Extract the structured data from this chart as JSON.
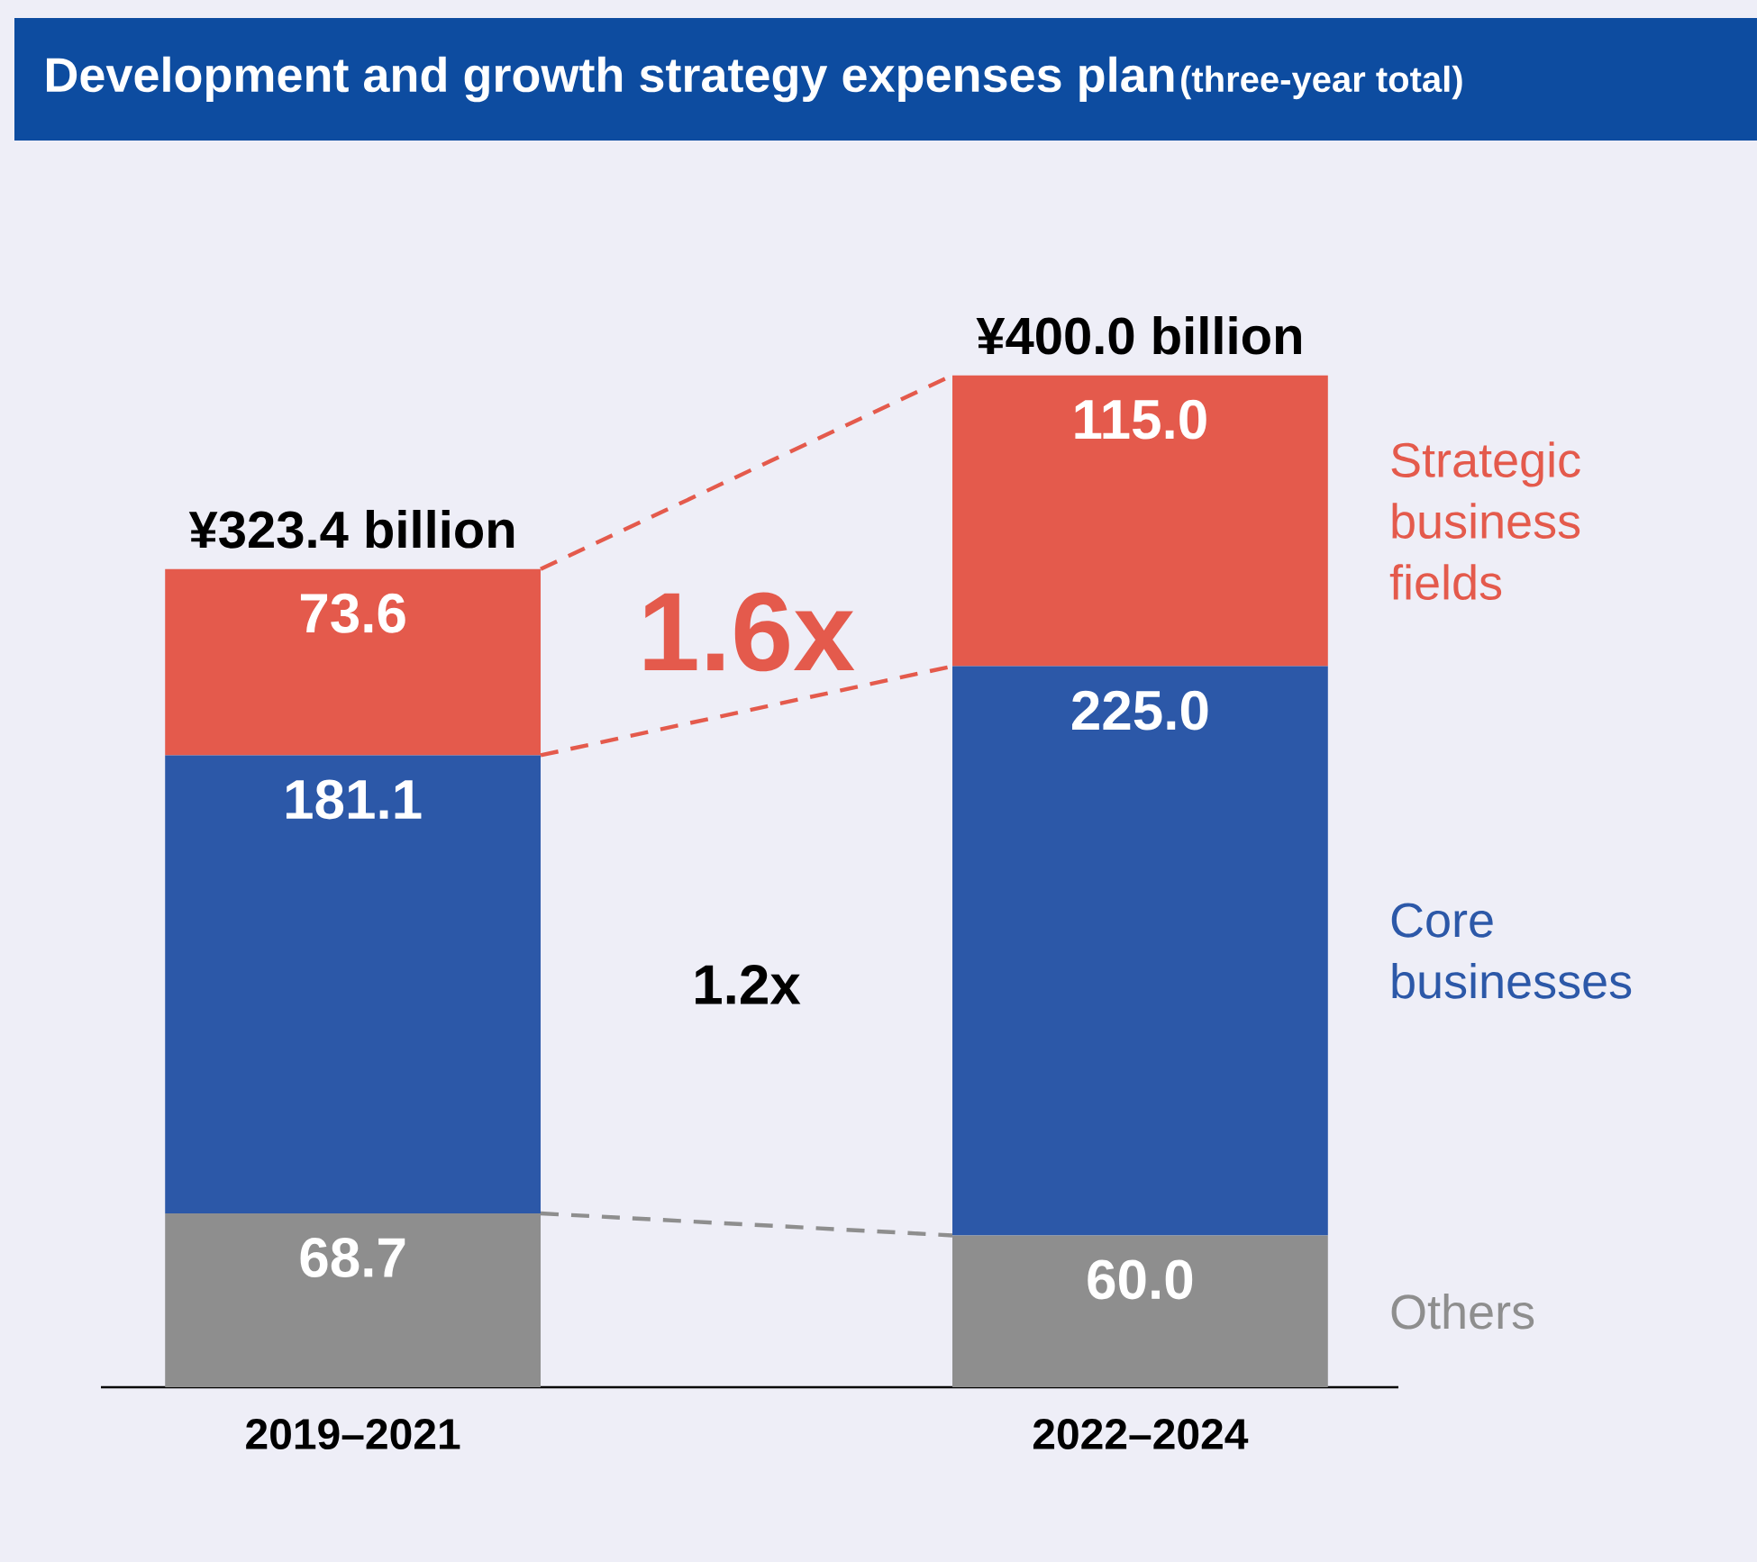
{
  "chart_data": {
    "type": "bar",
    "title": "Development and growth strategy expenses plan",
    "subtitle": "(three-year total)",
    "categories": [
      "2019–2021",
      "2022–2024"
    ],
    "stacked": true,
    "tick_labels": "x",
    "series": [
      {
        "name": "Others",
        "color": "#8e8e8e",
        "values": [
          68.7,
          60.0
        ],
        "value_labels": [
          "68.7",
          "60.0"
        ]
      },
      {
        "name": "Core businesses",
        "color": "#2c58a8",
        "values": [
          181.1,
          225.0
        ],
        "value_labels": [
          "181.1",
          "225.0"
        ]
      },
      {
        "name": "Strategic business fields",
        "color": "#e45a4c",
        "values": [
          73.6,
          115.0
        ],
        "value_labels": [
          "73.6",
          "115.0"
        ]
      }
    ],
    "totals": [
      "¥323.4 billion",
      "¥400.0 billion"
    ],
    "annotations": [
      "1.6x",
      "1.2x"
    ]
  }
}
